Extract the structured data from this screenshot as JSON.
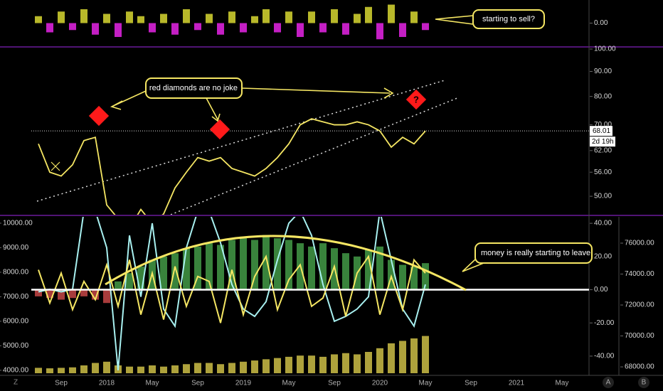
{
  "chart_data": [
    {
      "type": "bar",
      "values": [
        0.3,
        -0.4,
        0.5,
        -0.3,
        0.6,
        -0.5,
        0.4,
        -0.6,
        0.5,
        0.3,
        -0.4,
        0.4,
        -0.5,
        0.6,
        -0.3,
        0.4,
        -0.5,
        0.5,
        -0.4,
        0.3,
        0.6,
        -0.4,
        0.5,
        -0.6,
        0.5,
        -0.4,
        0.6,
        -0.5,
        0.4,
        0.7,
        -0.7,
        0.8,
        -0.6,
        0.5,
        -0.3,
        null,
        null,
        null,
        null,
        null,
        null,
        null,
        null,
        null,
        null,
        null,
        null,
        null
      ],
      "up_color": "#b8b82a",
      "down_color": "#c41fc4",
      "ylim": [
        -1,
        1
      ],
      "yticks": [
        {
          "value": 0,
          "label": "0.00"
        }
      ],
      "annotation": "starting to sell?"
    },
    {
      "type": "line",
      "values": [
        64,
        56,
        55,
        58,
        65,
        66,
        48,
        45,
        43,
        47,
        44,
        46,
        52,
        56,
        60,
        59,
        60,
        57,
        56,
        55,
        57,
        60,
        64,
        70,
        72,
        71,
        70,
        70,
        71,
        70,
        68,
        63,
        66,
        64,
        68,
        null,
        null,
        null,
        null,
        null,
        null,
        null,
        null,
        null,
        null,
        null,
        null,
        null
      ],
      "color": "#f5e663",
      "log_scale": true,
      "ylim": [
        46,
        100
      ],
      "yticks": [
        {
          "value": 50,
          "label": "50.00"
        },
        {
          "value": 56,
          "label": "56.00"
        },
        {
          "value": 62,
          "label": "62.00"
        },
        {
          "value": 70,
          "label": "70.00"
        },
        {
          "value": 80,
          "label": "80.00"
        },
        {
          "value": 90,
          "label": "90.00"
        },
        {
          "value": 100,
          "label": "100.00"
        }
      ],
      "last_price": 68.01,
      "countdown": "2d 19h",
      "annotations": [
        "red diamonds  are no joke",
        "?"
      ]
    },
    {
      "type": "indicator",
      "categories": [
        null,
        null,
        "Sep",
        null,
        null,
        null,
        "2018",
        null,
        null,
        null,
        "May",
        null,
        null,
        null,
        "Sep",
        null,
        null,
        null,
        "2019",
        null,
        null,
        null,
        "May",
        null,
        null,
        null,
        "Sep",
        null,
        null,
        null,
        "2020",
        null,
        null,
        null,
        "May",
        null,
        null,
        null,
        "Sep",
        null,
        null,
        null,
        "2021",
        null,
        null,
        null,
        "May",
        null
      ],
      "series": [
        {
          "kind": "bar",
          "axis": "y2",
          "color": "#4caf50",
          "down_color": "#e05050",
          "values": [
            -4,
            -5,
            -6,
            -5,
            -4,
            -6,
            -8,
            5,
            10,
            14,
            18,
            20,
            22,
            25,
            26,
            28,
            27,
            30,
            32,
            30,
            33,
            31,
            30,
            28,
            26,
            28,
            25,
            22,
            20,
            24,
            26,
            18,
            15,
            14,
            16,
            null,
            null,
            null,
            null,
            null,
            null,
            null,
            null,
            null,
            null,
            null,
            null,
            null
          ]
        },
        {
          "kind": "bar",
          "axis": "y",
          "color": "#e8d850",
          "values": [
            4100,
            4080,
            4100,
            4120,
            4200,
            4300,
            4350,
            4200,
            4150,
            4150,
            4200,
            4150,
            4200,
            4250,
            4300,
            4300,
            4250,
            4300,
            4350,
            4400,
            4450,
            4500,
            4550,
            4600,
            4600,
            4550,
            4650,
            4700,
            4650,
            4750,
            4900,
            5100,
            5200,
            5300,
            5400,
            null,
            null,
            null,
            null,
            null,
            null,
            null,
            null,
            null,
            null,
            null,
            null,
            null
          ]
        },
        {
          "kind": "line",
          "axis": "y",
          "color": "#a8f0f0",
          "values": [
            7200,
            7300,
            7200,
            7300,
            10500,
            10500,
            9000,
            4000,
            9500,
            7000,
            10000,
            6500,
            5800,
            9000,
            10500,
            10500,
            9200,
            7500,
            6500,
            6200,
            6800,
            8500,
            10000,
            10500,
            9500,
            7500,
            6000,
            6200,
            6500,
            7000,
            10500,
            8500,
            6500,
            5800,
            7500,
            null,
            null,
            null,
            null,
            null,
            null,
            null,
            null,
            null,
            null,
            null,
            null,
            null
          ]
        },
        {
          "kind": "line",
          "axis": "y2",
          "color": "#f5e663",
          "values": [
            12,
            -8,
            10,
            -12,
            5,
            -6,
            15,
            -10,
            18,
            -15,
            10,
            -18,
            14,
            -10,
            8,
            5,
            -20,
            12,
            -15,
            8,
            20,
            -12,
            6,
            15,
            -10,
            -5,
            14,
            -16,
            10,
            20,
            -15,
            8,
            -12,
            18,
            10,
            null,
            null,
            null,
            null,
            null,
            null,
            null,
            null,
            null,
            null,
            null,
            null,
            null
          ]
        }
      ],
      "ylim": [
        3880,
        10260
      ],
      "yticks": [
        {
          "value": 4000,
          "label": "4000.00"
        },
        {
          "value": 5000,
          "label": "5000.00"
        },
        {
          "value": 6000,
          "label": "6000.00"
        },
        {
          "value": 7000,
          "label": "7000.00"
        },
        {
          "value": 8000,
          "label": "8000.00"
        },
        {
          "value": 9000,
          "label": "9000.00"
        },
        {
          "value": 10000,
          "label": "10000.00"
        }
      ],
      "y2lim": [
        -50.3,
        43.9
      ],
      "y2ticks": [
        {
          "value": -40,
          "label": "-40.00"
        },
        {
          "value": -20,
          "label": "-20.00"
        },
        {
          "value": 0,
          "label": "0.00"
        },
        {
          "value": 20,
          "label": "20.00"
        },
        {
          "value": 40,
          "label": "40.00"
        }
      ],
      "y3lim": [
        67590,
        77700
      ],
      "y3ticks": [
        {
          "value": 68000,
          "label": "68000.00"
        },
        {
          "value": 70000,
          "label": "70000.00"
        },
        {
          "value": 72000,
          "label": "72000.00"
        },
        {
          "value": 74000,
          "label": "74000.00"
        },
        {
          "value": 76000,
          "label": "76000.00"
        }
      ],
      "annotation": "money is really starting to leave"
    }
  ],
  "ui": {
    "left_icon": "Z",
    "right_icons": [
      "A",
      "B"
    ]
  }
}
